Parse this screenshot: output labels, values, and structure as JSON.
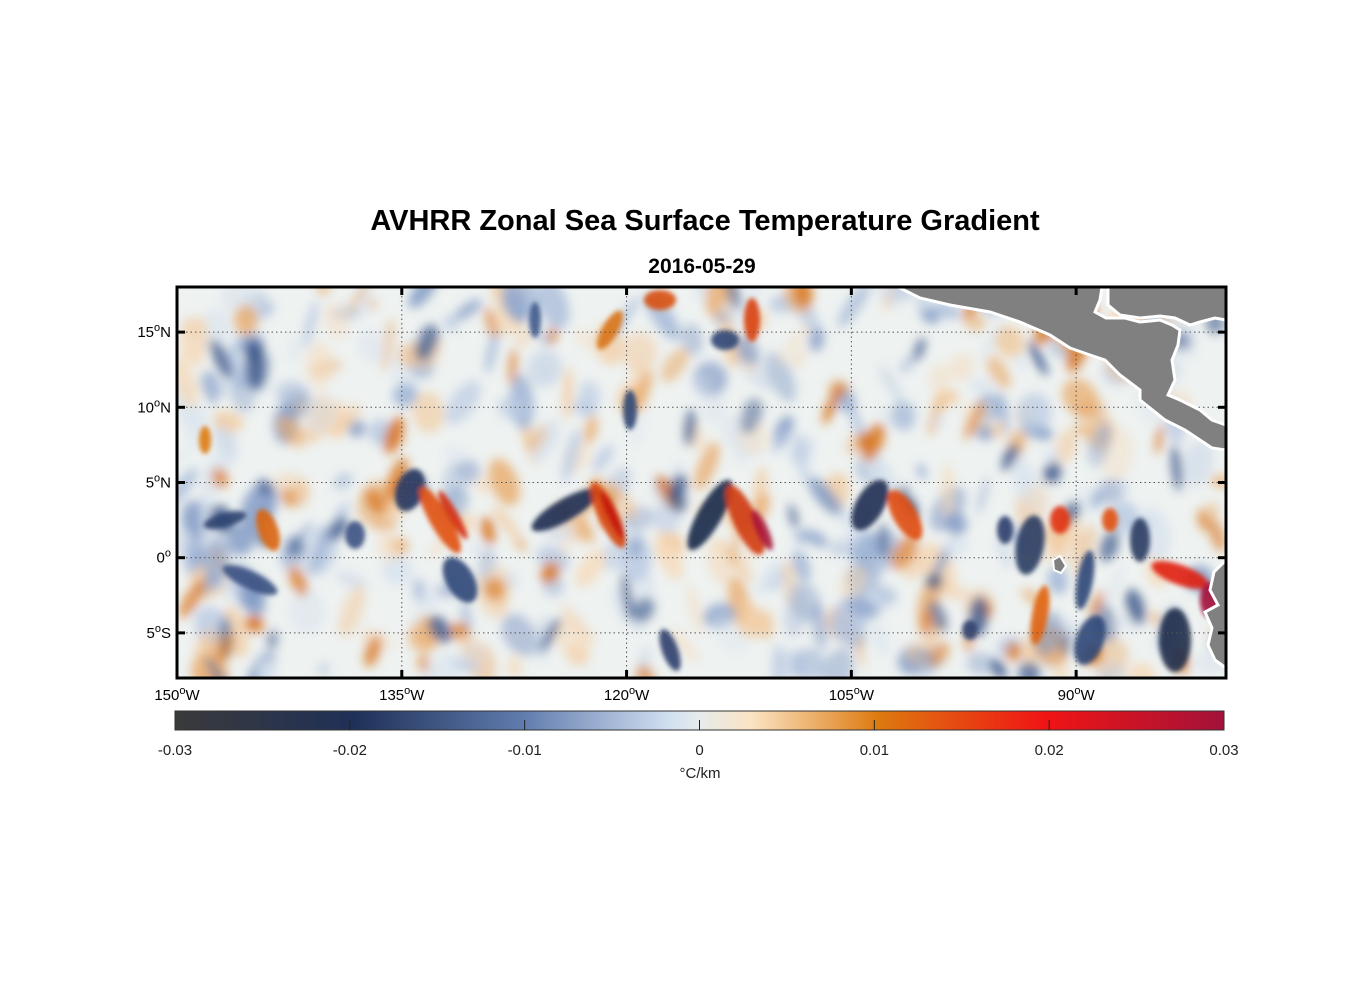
{
  "title": "AVHRR Zonal Sea Surface Temperature Gradient",
  "subtitle": "2016-05-29",
  "map": {
    "lon_range": [
      -150,
      -80
    ],
    "lat_range": [
      -8,
      18
    ],
    "lon_ticks": [
      {
        "value": -150,
        "num": "150",
        "deg": "o",
        "hemi": "W"
      },
      {
        "value": -135,
        "num": "135",
        "deg": "o",
        "hemi": "W"
      },
      {
        "value": -120,
        "num": "120",
        "deg": "o",
        "hemi": "W"
      },
      {
        "value": -105,
        "num": "105",
        "deg": "o",
        "hemi": "W"
      },
      {
        "value": -90,
        "num": "90",
        "deg": "o",
        "hemi": "W"
      }
    ],
    "lat_ticks": [
      {
        "value": 15,
        "num": "15",
        "deg": "o",
        "hemi": "N"
      },
      {
        "value": 10,
        "num": "10",
        "deg": "o",
        "hemi": "N"
      },
      {
        "value": 5,
        "num": "5",
        "deg": "o",
        "hemi": "N"
      },
      {
        "value": 0,
        "num": "0",
        "deg": "o",
        "hemi": ""
      },
      {
        "value": -5,
        "num": "5",
        "deg": "o",
        "hemi": "S"
      }
    ],
    "grid": true,
    "land_color": "#808080"
  },
  "colorbar": {
    "range": [
      -0.03,
      0.03
    ],
    "ticks": [
      "-0.03",
      "-0.02",
      "-0.01",
      "0",
      "0.01",
      "0.02",
      "0.03"
    ],
    "label": "°C/km",
    "colors": [
      "#3a3a3a",
      "#1f3057",
      "#5f7bad",
      "#e4ecec",
      "#fbe3c2",
      "#dd7a10",
      "#f01414",
      "#a3123a"
    ]
  }
}
